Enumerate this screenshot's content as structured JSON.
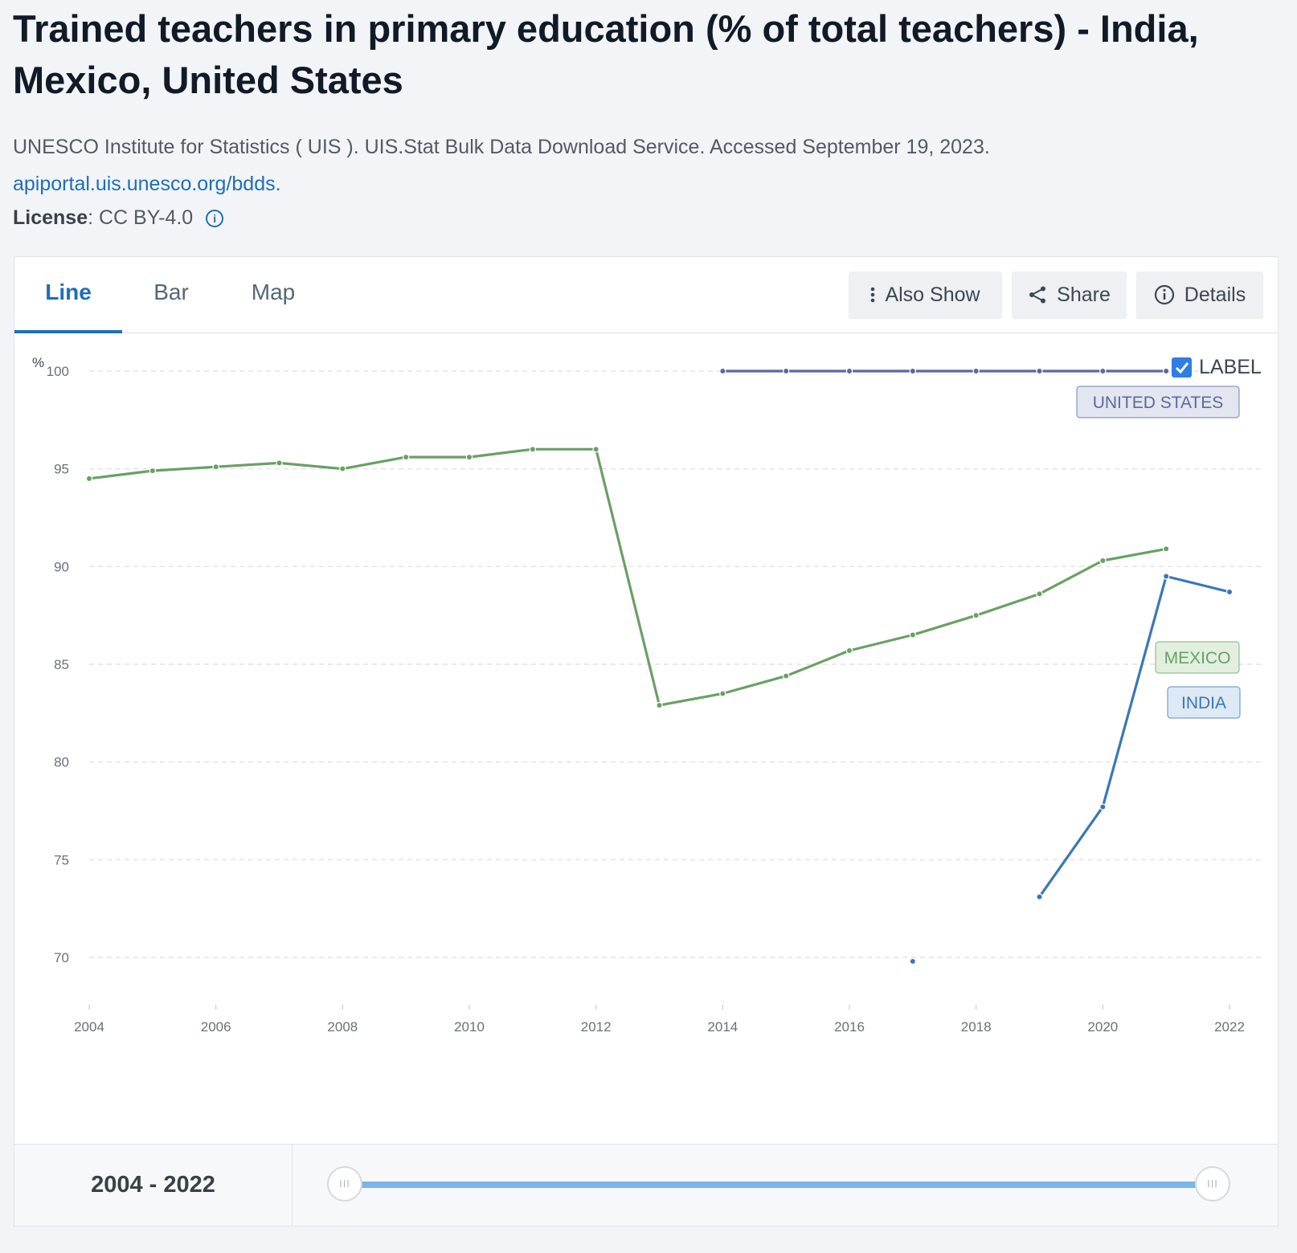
{
  "page": {
    "title": "Trained teachers in primary education (% of total teachers) - India, Mexico, United States",
    "source_text": "UNESCO Institute for Statistics ( UIS ). UIS.Stat Bulk Data Download Service. Accessed September 19, 2023.",
    "source_link": "apiportal.uis.unesco.org/bdds.",
    "license_label": "License",
    "license_value": " : CC BY-4.0",
    "license_info_icon": "info-icon"
  },
  "tabs": [
    {
      "label": "Line",
      "active": true
    },
    {
      "label": "Bar",
      "active": false
    },
    {
      "label": "Map",
      "active": false
    }
  ],
  "toolbar": {
    "also_show": {
      "label": "Also Show",
      "icon": "vertical-dots-icon"
    },
    "share": {
      "label": "Share",
      "icon": "share-icon"
    },
    "details": {
      "label": "Details",
      "icon": "info-icon"
    }
  },
  "label_toggle": {
    "label": "LABEL",
    "checked": true
  },
  "chart_data": {
    "type": "line",
    "ylabel": "%",
    "ylim": [
      68,
      100
    ],
    "yticks": [
      70,
      75,
      80,
      85,
      90,
      95,
      100
    ],
    "xlim": [
      2004,
      2022
    ],
    "xticks": [
      2004,
      2006,
      2008,
      2010,
      2012,
      2014,
      2016,
      2018,
      2020,
      2022
    ],
    "grid": true,
    "series": [
      {
        "name": "UNITED STATES",
        "color": "#5a6a9c",
        "label_bg": "#e3e5f0",
        "points": [
          [
            2014,
            100
          ],
          [
            2015,
            100
          ],
          [
            2016,
            100
          ],
          [
            2017,
            100
          ],
          [
            2018,
            100
          ],
          [
            2019,
            100
          ],
          [
            2020,
            100
          ],
          [
            2021,
            100
          ]
        ]
      },
      {
        "name": "MEXICO",
        "color": "#6aa066",
        "label_bg": "#e2efdf",
        "points": [
          [
            2004,
            94.5
          ],
          [
            2005,
            94.9
          ],
          [
            2006,
            95.1
          ],
          [
            2007,
            95.3
          ],
          [
            2008,
            95
          ],
          [
            2009,
            95.6
          ],
          [
            2010,
            95.6
          ],
          [
            2011,
            96
          ],
          [
            2012,
            96
          ],
          [
            2013,
            82.9
          ],
          [
            2014,
            83.5
          ],
          [
            2015,
            84.4
          ],
          [
            2016,
            85.7
          ],
          [
            2017,
            86.5
          ],
          [
            2018,
            87.5
          ],
          [
            2019,
            88.6
          ],
          [
            2020,
            90.3
          ],
          [
            2021,
            90.9
          ]
        ]
      },
      {
        "name": "INDIA",
        "color": "#3a78b4",
        "label_bg": "#dde9f5",
        "points": [
          [
            2017,
            69.8
          ],
          [
            2019,
            73.1
          ],
          [
            2020,
            77.7
          ],
          [
            2021,
            89.5
          ],
          [
            2022,
            88.7
          ]
        ],
        "segments": [
          [
            [
              2017,
              69.8
            ]
          ],
          [
            [
              2019,
              73.1
            ],
            [
              2020,
              77.7
            ],
            [
              2021,
              89.5
            ],
            [
              2022,
              88.7
            ]
          ]
        ]
      }
    ]
  },
  "range": {
    "label": "2004 - 2022",
    "start": 2004,
    "end": 2022,
    "handle_glyph": "III"
  }
}
